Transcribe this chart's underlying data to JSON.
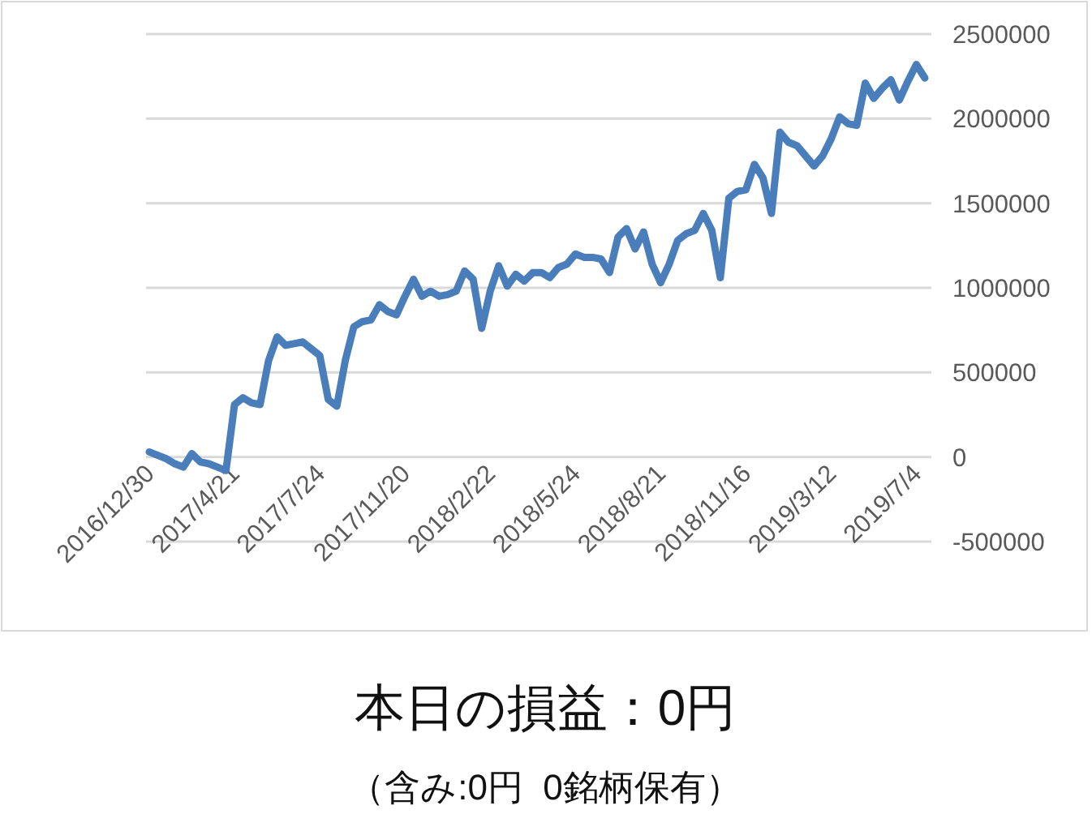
{
  "chart_data": {
    "type": "line",
    "title": "本日の損益：0円",
    "subtitle": "（含み:0円  0銘柄保有）",
    "categories": [
      "2016/12/30",
      null,
      null,
      null,
      null,
      null,
      null,
      null,
      null,
      null,
      "2017/4/21",
      null,
      null,
      null,
      null,
      null,
      null,
      null,
      null,
      null,
      "2017/7/24",
      null,
      null,
      null,
      null,
      null,
      null,
      null,
      null,
      null,
      "2017/11/20",
      null,
      null,
      null,
      null,
      null,
      null,
      null,
      null,
      null,
      "2018/2/22",
      null,
      null,
      null,
      null,
      null,
      null,
      null,
      null,
      null,
      "2018/5/24",
      null,
      null,
      null,
      null,
      null,
      null,
      null,
      null,
      null,
      "2018/8/21",
      null,
      null,
      null,
      null,
      null,
      null,
      null,
      null,
      null,
      "2018/11/16",
      null,
      null,
      null,
      null,
      null,
      null,
      null,
      null,
      null,
      "2019/3/12",
      null,
      null,
      null,
      null,
      null,
      null,
      null,
      null,
      null,
      "2019/7/4",
      null
    ],
    "series": [
      {
        "color": "#4a7ebb",
        "values": [
          30000,
          10000,
          -10000,
          -40000,
          -60000,
          20000,
          -30000,
          -40000,
          -60000,
          -80000,
          310000,
          350000,
          320000,
          310000,
          570000,
          710000,
          660000,
          670000,
          680000,
          640000,
          600000,
          340000,
          300000,
          570000,
          770000,
          800000,
          810000,
          900000,
          860000,
          840000,
          950000,
          1050000,
          950000,
          980000,
          950000,
          960000,
          980000,
          1100000,
          1050000,
          760000,
          980000,
          1130000,
          1010000,
          1080000,
          1040000,
          1090000,
          1090000,
          1060000,
          1120000,
          1140000,
          1200000,
          1180000,
          1180000,
          1170000,
          1090000,
          1300000,
          1350000,
          1230000,
          1330000,
          1140000,
          1030000,
          1140000,
          1280000,
          1320000,
          1340000,
          1440000,
          1340000,
          1060000,
          1530000,
          1570000,
          1580000,
          1730000,
          1650000,
          1440000,
          1920000,
          1860000,
          1840000,
          1780000,
          1720000,
          1780000,
          1880000,
          2010000,
          1970000,
          1960000,
          2210000,
          2120000,
          2180000,
          2230000,
          2110000,
          2220000,
          2320000,
          2240000
        ]
      }
    ],
    "ylim": [
      -500000,
      2500000
    ],
    "yticks": [
      -500000,
      0,
      500000,
      1000000,
      1500000,
      2000000,
      2500000
    ],
    "grid": "y",
    "marker": "none",
    "line_style": "solid"
  }
}
